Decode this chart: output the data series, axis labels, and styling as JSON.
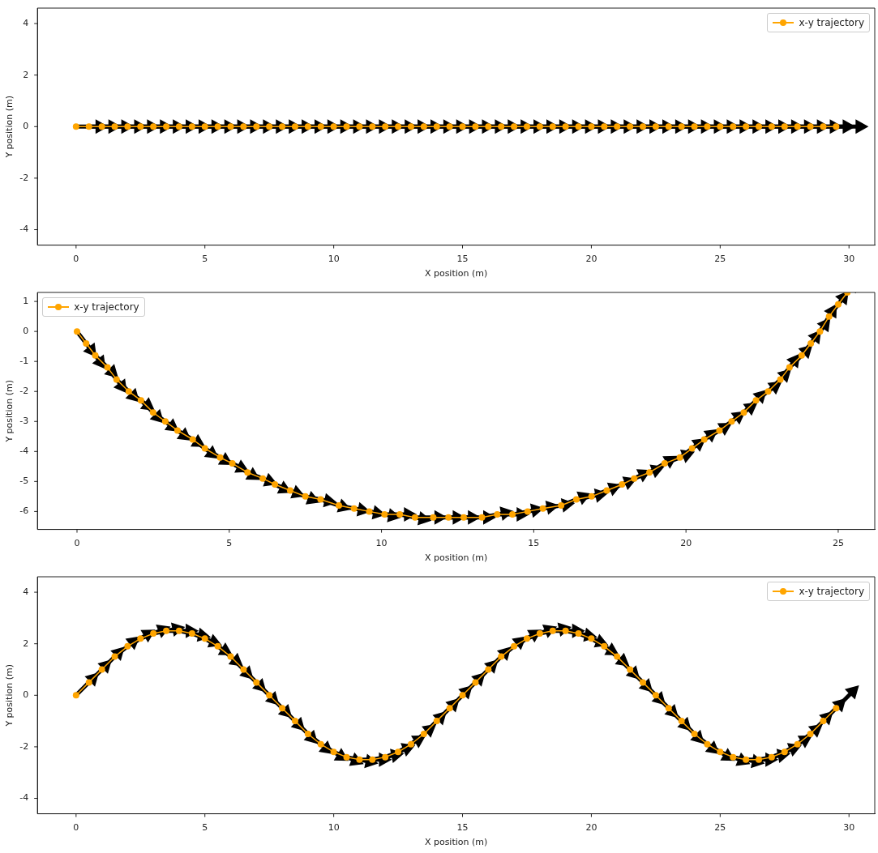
{
  "chart_data": [
    {
      "type": "line",
      "xlabel": "X position (m)",
      "ylabel": "Y position (m)",
      "legend": "top right",
      "marker": "circle",
      "line_style": "solid",
      "xlim": [
        -1.5,
        31
      ],
      "ylim": [
        -4.6,
        4.6
      ],
      "xticks": [
        0,
        5,
        10,
        15,
        20,
        25,
        30
      ],
      "yticks": [
        -4,
        -2,
        0,
        2,
        4
      ],
      "series": [
        {
          "name": "x-y trajectory",
          "color": "#ffa500",
          "x": [
            0,
            0.5,
            1,
            1.5,
            2,
            2.5,
            3,
            3.5,
            4,
            4.5,
            5,
            5.5,
            6,
            6.5,
            7,
            7.5,
            8,
            8.5,
            9,
            9.5,
            10,
            10.5,
            11,
            11.5,
            12,
            12.5,
            13,
            13.5,
            14,
            14.5,
            15,
            15.5,
            16,
            16.5,
            17,
            17.5,
            18,
            18.5,
            19,
            19.5,
            20,
            20.5,
            21,
            21.5,
            22,
            22.5,
            23,
            23.5,
            24,
            24.5,
            25,
            25.5,
            26,
            26.5,
            27,
            27.5,
            28,
            28.5,
            29,
            29.5
          ],
          "values": [
            0,
            0,
            0,
            0,
            0,
            0,
            0,
            0,
            0,
            0,
            0,
            0,
            0,
            0,
            0,
            0,
            0,
            0,
            0,
            0,
            0,
            0,
            0,
            0,
            0,
            0,
            0,
            0,
            0,
            0,
            0,
            0,
            0,
            0,
            0,
            0,
            0,
            0,
            0,
            0,
            0,
            0,
            0,
            0,
            0,
            0,
            0,
            0,
            0,
            0,
            0,
            0,
            0,
            0,
            0,
            0,
            0,
            0,
            0,
            0
          ]
        }
      ]
    },
    {
      "type": "line",
      "xlabel": "X position (m)",
      "ylabel": "Y position (m)",
      "legend": "top left",
      "marker": "circle",
      "line_style": "solid",
      "xlim": [
        -1.3,
        26.2
      ],
      "ylim": [
        -6.6,
        1.3
      ],
      "xticks": [
        0,
        5,
        10,
        15,
        20,
        25
      ],
      "yticks": [
        -6,
        -5,
        -4,
        -3,
        -2,
        -1,
        0,
        1
      ],
      "series": [
        {
          "name": "x-y trajectory",
          "color": "#ffa500",
          "x": [
            0,
            0.3,
            0.6,
            1,
            1.3,
            1.7,
            2.1,
            2.5,
            2.9,
            3.3,
            3.8,
            4.2,
            4.7,
            5.1,
            5.6,
            6.1,
            6.5,
            7,
            7.5,
            8,
            8.6,
            9.1,
            9.6,
            10.1,
            10.6,
            11.1,
            11.7,
            12.2,
            12.7,
            13.3,
            13.8,
            14.3,
            14.8,
            15.3,
            15.9,
            16.4,
            16.9,
            17.4,
            17.9,
            18.3,
            18.8,
            19.3,
            19.8,
            20.2,
            20.6,
            21.1,
            21.5,
            21.9,
            22.3,
            22.7,
            23.1,
            23.4,
            23.8,
            24.1,
            24.4,
            24.7,
            25,
            25.3
          ],
          "values": [
            0,
            -0.4,
            -0.8,
            -1.2,
            -1.6,
            -2,
            -2.3,
            -2.7,
            -3,
            -3.3,
            -3.6,
            -3.9,
            -4.2,
            -4.4,
            -4.7,
            -4.9,
            -5.1,
            -5.3,
            -5.5,
            -5.6,
            -5.8,
            -5.9,
            -6,
            -6.1,
            -6.1,
            -6.2,
            -6.2,
            -6.2,
            -6.2,
            -6.2,
            -6.1,
            -6.1,
            -6,
            -5.9,
            -5.8,
            -5.6,
            -5.5,
            -5.3,
            -5.1,
            -4.9,
            -4.7,
            -4.4,
            -4.2,
            -3.9,
            -3.6,
            -3.3,
            -3,
            -2.7,
            -2.3,
            -2,
            -1.6,
            -1.2,
            -0.8,
            -0.4,
            0,
            0.5,
            0.9,
            1.3
          ]
        }
      ]
    },
    {
      "type": "line",
      "xlabel": "X position (m)",
      "ylabel": "Y position (m)",
      "legend": "top right",
      "marker": "circle",
      "line_style": "solid",
      "xlim": [
        -1.5,
        31
      ],
      "ylim": [
        -4.6,
        4.6
      ],
      "xticks": [
        0,
        5,
        10,
        15,
        20,
        25,
        30
      ],
      "yticks": [
        -4,
        -2,
        0,
        2,
        4
      ],
      "series": [
        {
          "name": "x-y trajectory",
          "color": "#ffa500",
          "x": [
            0,
            0.5,
            1,
            1.5,
            2,
            2.5,
            3,
            3.5,
            4,
            4.5,
            5,
            5.5,
            6,
            6.5,
            7,
            7.5,
            8,
            8.5,
            9,
            9.5,
            10,
            10.5,
            11,
            11.5,
            12,
            12.5,
            13,
            13.5,
            14,
            14.5,
            15,
            15.5,
            16,
            16.5,
            17,
            17.5,
            18,
            18.5,
            19,
            19.5,
            20,
            20.5,
            21,
            21.5,
            22,
            22.5,
            23,
            23.5,
            24,
            24.5,
            25,
            25.5,
            26,
            26.5,
            27,
            27.5,
            28,
            28.5,
            29,
            29.5
          ],
          "values": [
            0,
            0.5,
            1,
            1.5,
            1.9,
            2.2,
            2.4,
            2.5,
            2.5,
            2.4,
            2.2,
            1.9,
            1.5,
            1,
            0.5,
            0,
            -0.5,
            -1,
            -1.5,
            -1.9,
            -2.2,
            -2.4,
            -2.5,
            -2.5,
            -2.4,
            -2.2,
            -1.9,
            -1.5,
            -1,
            -0.5,
            0,
            0.5,
            1,
            1.5,
            1.9,
            2.2,
            2.4,
            2.5,
            2.5,
            2.4,
            2.2,
            1.9,
            1.5,
            1,
            0.5,
            0,
            -0.5,
            -1,
            -1.5,
            -1.9,
            -2.2,
            -2.4,
            -2.5,
            -2.5,
            -2.4,
            -2.2,
            -1.9,
            -1.5,
            -1,
            -0.5
          ]
        }
      ]
    }
  ]
}
